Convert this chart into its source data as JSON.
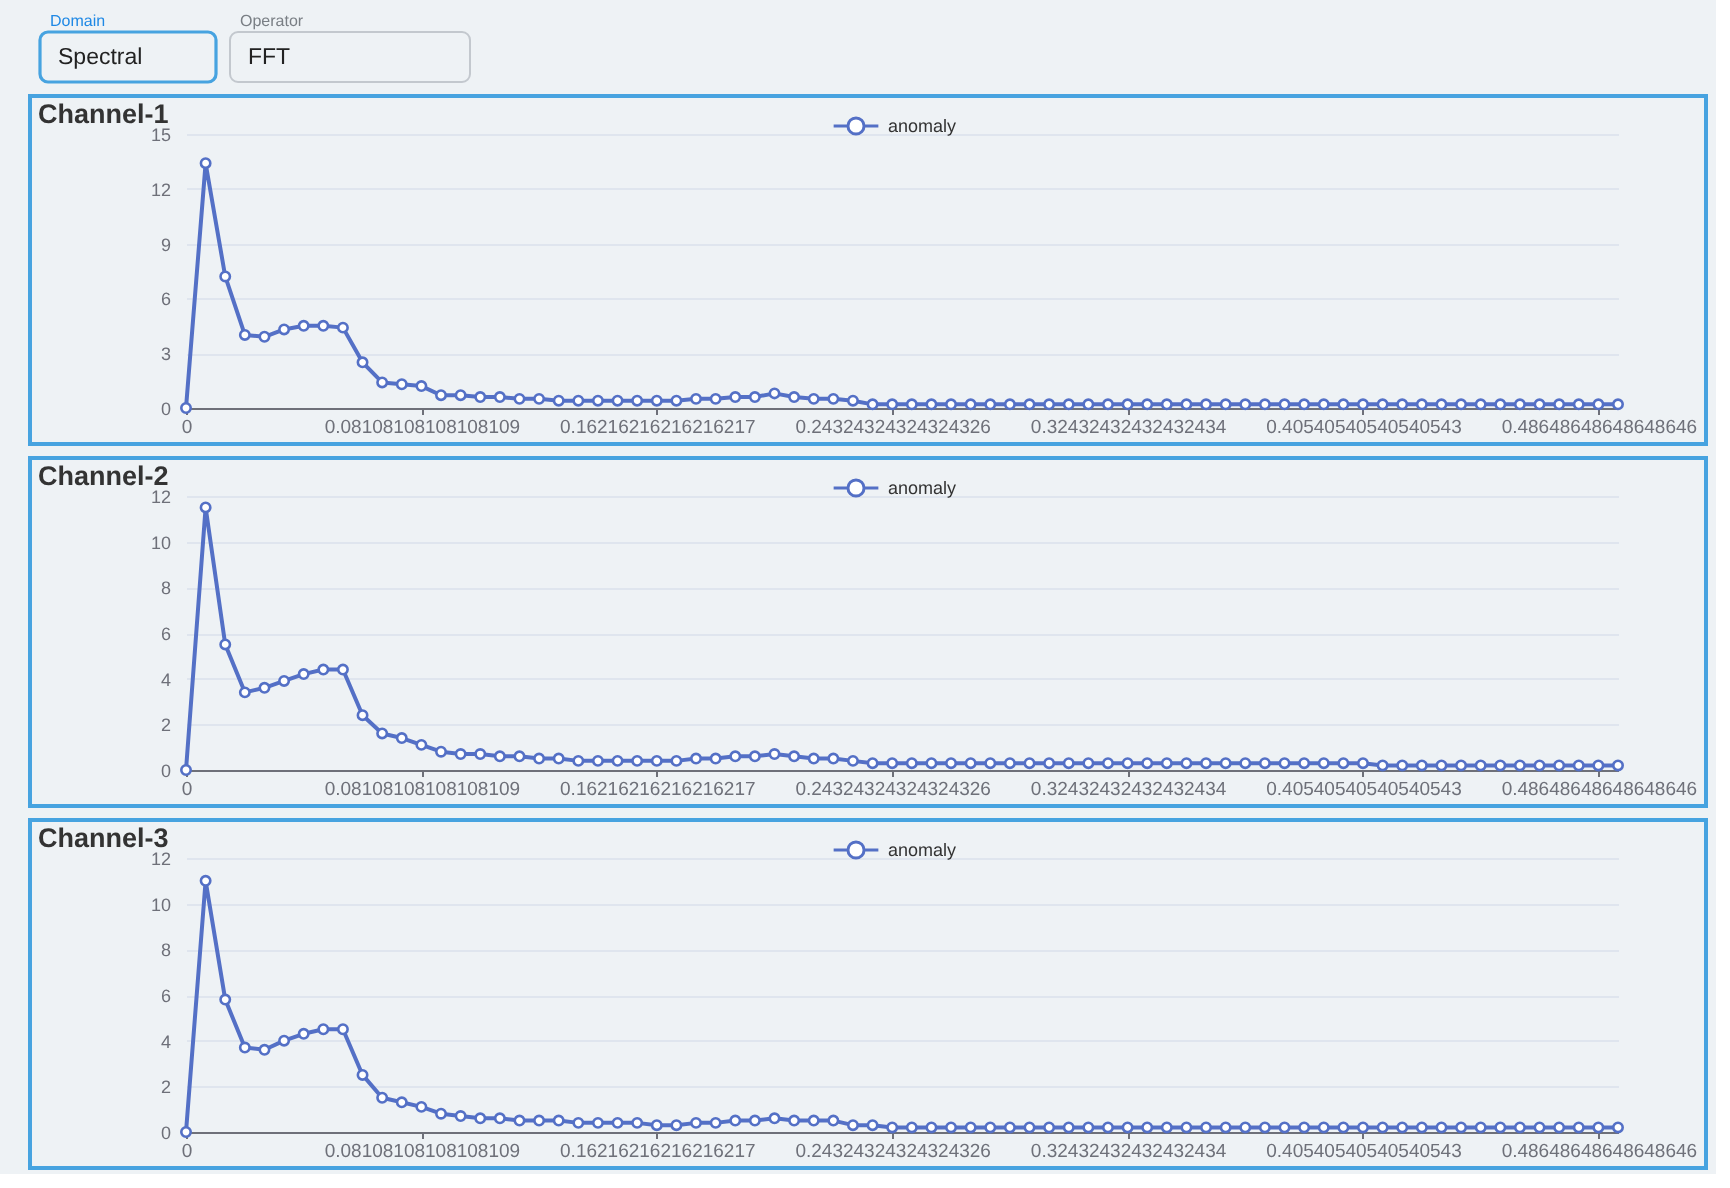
{
  "chart_data": [
    {
      "type": "other",
      "annotations": [
        "Domain",
        "Spectral",
        "Operator",
        "FFT"
      ]
    },
    {
      "type": "line",
      "title": "Channel-1",
      "categories": [
        "0",
        null,
        null,
        null,
        null,
        null,
        null,
        null,
        null,
        null,
        null,
        null,
        "0.08108108108108109",
        null,
        null,
        null,
        null,
        null,
        null,
        null,
        null,
        null,
        null,
        null,
        "0.16216216216216217",
        null,
        null,
        null,
        null,
        null,
        null,
        null,
        null,
        null,
        null,
        null,
        "0.24324324324324326",
        null,
        null,
        null,
        null,
        null,
        null,
        null,
        null,
        null,
        null,
        null,
        "0.32432432432432434",
        null,
        null,
        null,
        null,
        null,
        null,
        null,
        null,
        null,
        null,
        null,
        "0.40540540540540543",
        null,
        null,
        null,
        null,
        null,
        null,
        null,
        null,
        null,
        null,
        null,
        "0.48648648648648646",
        null
      ],
      "series": [
        {
          "name": "anomaly",
          "color": "#5470c6",
          "values": [
            0,
            13.4,
            7.2,
            4.0,
            3.9,
            4.3,
            4.5,
            4.5,
            4.4,
            2.5,
            1.4,
            1.3,
            1.2,
            0.7,
            0.7,
            0.6,
            0.6,
            0.5,
            0.5,
            0.4,
            0.4,
            0.4,
            0.4,
            0.4,
            0.4,
            0.4,
            0.5,
            0.5,
            0.6,
            0.6,
            0.8,
            0.6,
            0.5,
            0.5,
            0.4,
            0.2,
            0.2,
            0.2,
            0.2,
            0.2,
            0.2,
            0.2,
            0.2,
            0.2,
            0.2,
            0.2,
            0.2,
            0.2,
            0.2,
            0.2,
            0.2,
            0.2,
            0.2,
            0.2,
            0.2,
            0.2,
            0.2,
            0.2,
            0.2,
            0.2,
            0.2,
            0.2,
            0.2,
            0.2,
            0.2,
            0.2,
            0.2,
            0.2,
            0.2,
            0.2,
            0.2,
            0.2,
            0.2,
            0.2
          ]
        }
      ],
      "ylim": [
        0,
        15
      ],
      "yticks": [
        0,
        3,
        6,
        9,
        12,
        15
      ],
      "grid": "y",
      "legend": "top",
      "marker": "circle",
      "line_style": "solid"
    },
    {
      "type": "line",
      "title": "Channel-2",
      "categories": [
        "0",
        null,
        null,
        null,
        null,
        null,
        null,
        null,
        null,
        null,
        null,
        null,
        "0.08108108108108109",
        null,
        null,
        null,
        null,
        null,
        null,
        null,
        null,
        null,
        null,
        null,
        "0.16216216216216217",
        null,
        null,
        null,
        null,
        null,
        null,
        null,
        null,
        null,
        null,
        null,
        "0.24324324324324326",
        null,
        null,
        null,
        null,
        null,
        null,
        null,
        null,
        null,
        null,
        null,
        "0.32432432432432434",
        null,
        null,
        null,
        null,
        null,
        null,
        null,
        null,
        null,
        null,
        null,
        "0.40540540540540543",
        null,
        null,
        null,
        null,
        null,
        null,
        null,
        null,
        null,
        null,
        null,
        "0.48648648648648646",
        null
      ],
      "series": [
        {
          "name": "anomaly",
          "color": "#5470c6",
          "values": [
            0,
            11.5,
            5.5,
            3.4,
            3.6,
            3.9,
            4.2,
            4.4,
            4.4,
            2.4,
            1.6,
            1.4,
            1.1,
            0.8,
            0.7,
            0.7,
            0.6,
            0.6,
            0.5,
            0.5,
            0.4,
            0.4,
            0.4,
            0.4,
            0.4,
            0.4,
            0.5,
            0.5,
            0.6,
            0.6,
            0.7,
            0.6,
            0.5,
            0.5,
            0.4,
            0.3,
            0.3,
            0.3,
            0.3,
            0.3,
            0.3,
            0.3,
            0.3,
            0.3,
            0.3,
            0.3,
            0.3,
            0.3,
            0.3,
            0.3,
            0.3,
            0.3,
            0.3,
            0.3,
            0.3,
            0.3,
            0.3,
            0.3,
            0.3,
            0.3,
            0.3,
            0.2,
            0.2,
            0.2,
            0.2,
            0.2,
            0.2,
            0.2,
            0.2,
            0.2,
            0.2,
            0.2,
            0.2,
            0.2
          ]
        }
      ],
      "ylim": [
        0,
        12
      ],
      "yticks": [
        0,
        2,
        4,
        6,
        8,
        10,
        12
      ],
      "grid": "y",
      "legend": "top",
      "marker": "circle",
      "line_style": "solid"
    },
    {
      "type": "line",
      "title": "Channel-3",
      "categories": [
        "0",
        null,
        null,
        null,
        null,
        null,
        null,
        null,
        null,
        null,
        null,
        null,
        "0.08108108108108109",
        null,
        null,
        null,
        null,
        null,
        null,
        null,
        null,
        null,
        null,
        null,
        "0.16216216216216217",
        null,
        null,
        null,
        null,
        null,
        null,
        null,
        null,
        null,
        null,
        null,
        "0.24324324324324326",
        null,
        null,
        null,
        null,
        null,
        null,
        null,
        null,
        null,
        null,
        null,
        "0.32432432432432434",
        null,
        null,
        null,
        null,
        null,
        null,
        null,
        null,
        null,
        null,
        null,
        "0.40540540540540543",
        null,
        null,
        null,
        null,
        null,
        null,
        null,
        null,
        null,
        null,
        null,
        "0.48648648648648646",
        null
      ],
      "series": [
        {
          "name": "anomaly",
          "color": "#5470c6",
          "values": [
            0,
            11.0,
            5.8,
            3.7,
            3.6,
            4.0,
            4.3,
            4.5,
            4.5,
            2.5,
            1.5,
            1.3,
            1.1,
            0.8,
            0.7,
            0.6,
            0.6,
            0.5,
            0.5,
            0.5,
            0.4,
            0.4,
            0.4,
            0.4,
            0.3,
            0.3,
            0.4,
            0.4,
            0.5,
            0.5,
            0.6,
            0.5,
            0.5,
            0.5,
            0.3,
            0.3,
            0.2,
            0.2,
            0.2,
            0.2,
            0.2,
            0.2,
            0.2,
            0.2,
            0.2,
            0.2,
            0.2,
            0.2,
            0.2,
            0.2,
            0.2,
            0.2,
            0.2,
            0.2,
            0.2,
            0.2,
            0.2,
            0.2,
            0.2,
            0.2,
            0.2,
            0.2,
            0.2,
            0.2,
            0.2,
            0.2,
            0.2,
            0.2,
            0.2,
            0.2,
            0.2,
            0.2,
            0.2,
            0.2
          ]
        }
      ],
      "ylim": [
        0,
        12
      ],
      "yticks": [
        0,
        2,
        4,
        6,
        8,
        10,
        12
      ],
      "grid": "y",
      "legend": "top",
      "marker": "circle",
      "line_style": "solid"
    }
  ]
}
